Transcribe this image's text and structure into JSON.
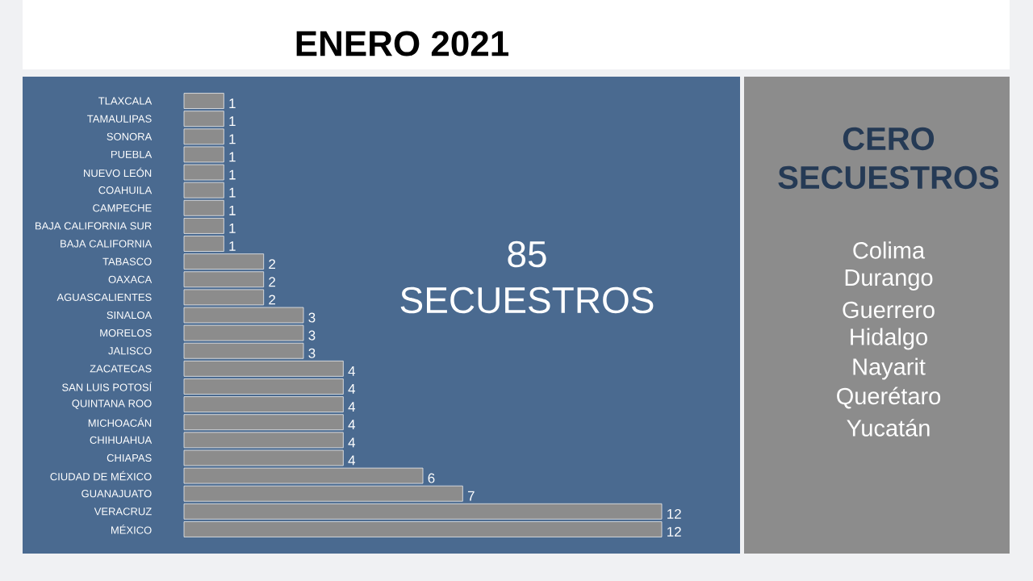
{
  "chart_data": {
    "type": "bar",
    "orientation": "horizontal",
    "title": "ENERO 2021",
    "categories": [
      "TLAXCALA",
      "TAMAULIPAS",
      "SONORA",
      "PUEBLA",
      "NUEVO LEÓN",
      "COAHUILA",
      "CAMPECHE",
      "BAJA CALIFORNIA SUR",
      "BAJA CALIFORNIA",
      "TABASCO",
      "OAXACA",
      "AGUASCALIENTES",
      "SINALOA",
      "MORELOS",
      "JALISCO",
      "ZACATECAS",
      "SAN LUIS POTOSÍ",
      "QUINTANA ROO",
      "MICHOACÁN",
      "CHIHUAHUA",
      "CHIAPAS",
      "CIUDAD DE MÉXICO",
      "GUANAJUATO",
      "VERACRUZ",
      "MÉXICO"
    ],
    "values": [
      1,
      1,
      1,
      1,
      1,
      1,
      1,
      1,
      1,
      2,
      2,
      2,
      3,
      3,
      3,
      4,
      4,
      4,
      4,
      4,
      4,
      6,
      7,
      12,
      12
    ],
    "color": "#8c8c8c",
    "data_labels": true,
    "xlim": [
      0,
      12
    ],
    "annotations": [
      "85",
      "SECUESTROS",
      "CERO",
      "SECUESTROS",
      "Colima",
      "Durango",
      "Guerrero",
      "Hidalgo",
      "Nayarit",
      "Querétaro",
      "Yucatán"
    ]
  }
}
